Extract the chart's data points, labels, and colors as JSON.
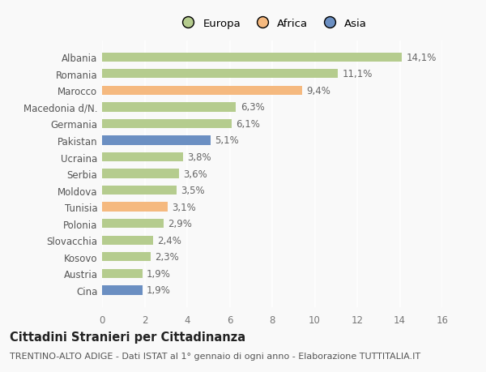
{
  "categories": [
    "Albania",
    "Romania",
    "Marocco",
    "Macedonia d/N.",
    "Germania",
    "Pakistan",
    "Ucraina",
    "Serbia",
    "Moldova",
    "Tunisia",
    "Polonia",
    "Slovacchia",
    "Kosovo",
    "Austria",
    "Cina"
  ],
  "values": [
    14.1,
    11.1,
    9.4,
    6.3,
    6.1,
    5.1,
    3.8,
    3.6,
    3.5,
    3.1,
    2.9,
    2.4,
    2.3,
    1.9,
    1.9
  ],
  "labels": [
    "14,1%",
    "11,1%",
    "9,4%",
    "6,3%",
    "6,1%",
    "5,1%",
    "3,8%",
    "3,6%",
    "3,5%",
    "3,1%",
    "2,9%",
    "2,4%",
    "2,3%",
    "1,9%",
    "1,9%"
  ],
  "continents": [
    "Europa",
    "Europa",
    "Africa",
    "Europa",
    "Europa",
    "Asia",
    "Europa",
    "Europa",
    "Europa",
    "Africa",
    "Europa",
    "Europa",
    "Europa",
    "Europa",
    "Asia"
  ],
  "colors": {
    "Europa": "#b5cc8e",
    "Africa": "#f5b97f",
    "Asia": "#6b8fc2"
  },
  "xlim": [
    0,
    16
  ],
  "xticks": [
    0,
    2,
    4,
    6,
    8,
    10,
    12,
    14,
    16
  ],
  "title": "Cittadini Stranieri per Cittadinanza",
  "subtitle": "TRENTINO-ALTO ADIGE - Dati ISTAT al 1° gennaio di ogni anno - Elaborazione TUTTITALIA.IT",
  "bg_color": "#f9f9f9",
  "grid_color": "#ffffff",
  "bar_height": 0.55,
  "label_fontsize": 8.5,
  "ytick_fontsize": 8.5,
  "xtick_fontsize": 8.5,
  "title_fontsize": 10.5,
  "subtitle_fontsize": 8,
  "legend_fontsize": 9.5
}
